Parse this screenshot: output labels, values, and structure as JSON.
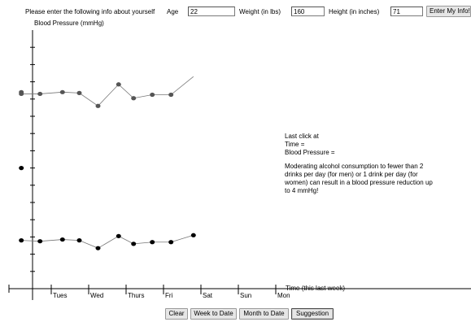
{
  "form": {
    "prompt": "Please enter the following info about yourself",
    "age_label": "Age",
    "age_value": "22",
    "weight_label": "Weight (in lbs)",
    "weight_value": "160",
    "height_label": "Height (in inches)",
    "height_value": "71",
    "submit_label": "Enter My Info!"
  },
  "info_panel": {
    "last_click": "Last click at",
    "time": "Time =",
    "blood_pressure": "Blood Pressure =",
    "tip": "Moderating alcohol consumption to fewer than 2 drinks per day (for men) or 1 drink per day (for women) can result in a blood pressure reduction up to 4 mmHg!"
  },
  "buttons": {
    "clear": "Clear",
    "week": "Week to Date",
    "month": "Month to Date",
    "suggestion": "Suggestion"
  },
  "chart_data": {
    "type": "line",
    "ylabel": "Blood Pressure (mmHg)",
    "xlabel": "Time (this last week)",
    "categories": [
      "Tues",
      "Wed",
      "Thurs",
      "Fri",
      "Sat",
      "Sun",
      "Mon"
    ],
    "x_range": [
      -0.5,
      7
    ],
    "y_range": [
      0,
      15
    ],
    "y_ticks": [
      1,
      2,
      3,
      4,
      5,
      6,
      7,
      8,
      9,
      10,
      11,
      12,
      13,
      14
    ],
    "series": [
      {
        "points": [
          [
            -0.3,
            11.4
          ],
          [
            -0.3,
            11.3
          ],
          [
            0.2,
            11.3
          ],
          [
            0.8,
            11.4
          ],
          [
            1.25,
            11.35
          ],
          [
            1.75,
            10.6
          ],
          [
            2.3,
            11.85
          ],
          [
            2.7,
            11.05
          ],
          [
            3.2,
            11.25
          ],
          [
            3.7,
            11.25
          ],
          [
            4.3,
            12.3
          ]
        ],
        "markers": 9,
        "color": "#555555"
      },
      {
        "points": [
          [
            -0.3,
            2.8
          ],
          [
            0.2,
            2.75
          ],
          [
            0.8,
            2.85
          ],
          [
            1.25,
            2.8
          ],
          [
            1.75,
            2.35
          ],
          [
            2.3,
            3.05
          ],
          [
            2.7,
            2.6
          ],
          [
            3.2,
            2.7
          ],
          [
            3.7,
            2.7
          ],
          [
            4.3,
            3.1
          ]
        ],
        "markers": 9,
        "color": "#000000"
      }
    ],
    "extra_points": [
      [
        -0.3,
        7.0
      ]
    ],
    "grid": false,
    "legend": "none"
  }
}
